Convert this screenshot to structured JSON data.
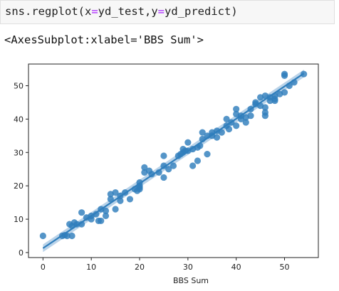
{
  "cell": {
    "code_func": "sns.regplot(x",
    "code_eq1": "=",
    "code_mid": "yd_test,y",
    "code_eq2": "=",
    "code_end": "yd_predict)"
  },
  "output": {
    "text": "<AxesSubplot:xlabel='BBS Sum'>"
  },
  "chart_data": {
    "type": "scatter",
    "xlabel": "BBS Sum",
    "ylabel": "",
    "xlim": [
      -3,
      57
    ],
    "ylim": [
      -1.5,
      56.5
    ],
    "xticks": [
      "0",
      "10",
      "20",
      "30",
      "40",
      "50"
    ],
    "yticks": [
      "0",
      "10",
      "20",
      "30",
      "40",
      "50"
    ],
    "grid": false,
    "point_color": "#2f7ebc",
    "line_color": "#2f7ebc",
    "band_color": "#a9c8e3",
    "regression": {
      "slope": 0.97,
      "intercept": 1.3,
      "x_range": [
        0,
        54
      ]
    },
    "points": [
      [
        0,
        5
      ],
      [
        4,
        5
      ],
      [
        4.5,
        5.2
      ],
      [
        5,
        5
      ],
      [
        5.5,
        8.5
      ],
      [
        6,
        5
      ],
      [
        6,
        8
      ],
      [
        6.5,
        9
      ],
      [
        7,
        8.5
      ],
      [
        8,
        8.5
      ],
      [
        8,
        12
      ],
      [
        9,
        10.5
      ],
      [
        10,
        10
      ],
      [
        10,
        11
      ],
      [
        11,
        11.5
      ],
      [
        11.5,
        9.5
      ],
      [
        12,
        9.5
      ],
      [
        12,
        13
      ],
      [
        13,
        11
      ],
      [
        13,
        12.5
      ],
      [
        14,
        16
      ],
      [
        14,
        17.5
      ],
      [
        15,
        13
      ],
      [
        15,
        18
      ],
      [
        16,
        15.5
      ],
      [
        16,
        17
      ],
      [
        17,
        18
      ],
      [
        18,
        16
      ],
      [
        19,
        19
      ],
      [
        19.5,
        18.5
      ],
      [
        20,
        20
      ],
      [
        20,
        19.5
      ],
      [
        20,
        21
      ],
      [
        20,
        19
      ],
      [
        21,
        25.5
      ],
      [
        21,
        24
      ],
      [
        22,
        24.5
      ],
      [
        22.5,
        23.5
      ],
      [
        24,
        24
      ],
      [
        25,
        22.5
      ],
      [
        25,
        26
      ],
      [
        25,
        29
      ],
      [
        26,
        25
      ],
      [
        27,
        26
      ],
      [
        28,
        29
      ],
      [
        28.5,
        29.5
      ],
      [
        29,
        30
      ],
      [
        29,
        31
      ],
      [
        29.5,
        30.5
      ],
      [
        30,
        33
      ],
      [
        30,
        30.5
      ],
      [
        31,
        26
      ],
      [
        31,
        31
      ],
      [
        32,
        27.5
      ],
      [
        32,
        31.5
      ],
      [
        32.5,
        32
      ],
      [
        33,
        34
      ],
      [
        33,
        36
      ],
      [
        34,
        35
      ],
      [
        34,
        29.5
      ],
      [
        35,
        35
      ],
      [
        35,
        36
      ],
      [
        36,
        34.5
      ],
      [
        36,
        36.5
      ],
      [
        37,
        36
      ],
      [
        38,
        38
      ],
      [
        38,
        40
      ],
      [
        38.5,
        37
      ],
      [
        39,
        39
      ],
      [
        40,
        38
      ],
      [
        40,
        41.5
      ],
      [
        40,
        43
      ],
      [
        41,
        40
      ],
      [
        41,
        41
      ],
      [
        42,
        39
      ],
      [
        42,
        40.5
      ],
      [
        43,
        43
      ],
      [
        43,
        41
      ],
      [
        44,
        45
      ],
      [
        44,
        44.5
      ],
      [
        45,
        44
      ],
      [
        45,
        46.5
      ],
      [
        46,
        43.5
      ],
      [
        46,
        42
      ],
      [
        46,
        41
      ],
      [
        46,
        47
      ],
      [
        47,
        46.5
      ],
      [
        47,
        45.5
      ],
      [
        48,
        47
      ],
      [
        48,
        46
      ],
      [
        48,
        45.5
      ],
      [
        49,
        47.5
      ],
      [
        50,
        48
      ],
      [
        50,
        53.5
      ],
      [
        50,
        53
      ],
      [
        51,
        50
      ],
      [
        52,
        51
      ],
      [
        54,
        53.5
      ]
    ]
  }
}
